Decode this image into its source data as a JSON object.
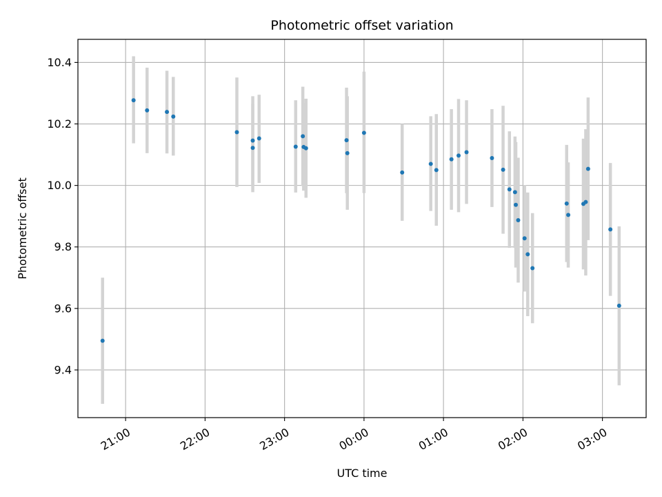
{
  "chart_data": {
    "type": "scatter",
    "title": "Photometric offset variation",
    "xlabel": "UTC time",
    "ylabel": "Photometric offset",
    "x_unit": "hours relative to 00:00 UTC",
    "xlim": [
      -3.6,
      3.55
    ],
    "ylim": [
      9.245,
      10.475
    ],
    "grid": true,
    "x_ticks": [
      {
        "value": -3,
        "label": "21:00"
      },
      {
        "value": -2,
        "label": "22:00"
      },
      {
        "value": -1,
        "label": "23:00"
      },
      {
        "value": 0,
        "label": "00:00"
      },
      {
        "value": 1,
        "label": "01:00"
      },
      {
        "value": 2,
        "label": "02:00"
      },
      {
        "value": 3,
        "label": "03:00"
      }
    ],
    "y_ticks": [
      {
        "value": 9.4,
        "label": "9.4"
      },
      {
        "value": 9.6,
        "label": "9.6"
      },
      {
        "value": 9.8,
        "label": "9.8"
      },
      {
        "value": 10.0,
        "label": "10.0"
      },
      {
        "value": 10.2,
        "label": "10.2"
      },
      {
        "value": 10.4,
        "label": "10.4"
      }
    ],
    "colors": {
      "point": "#1f77b4",
      "errorbar": "#d3d3d3",
      "grid": "#b0b0b0"
    },
    "points": [
      {
        "x": -3.29,
        "y": 9.495,
        "ylow": 9.29,
        "yhigh": 9.7
      },
      {
        "x": -2.9,
        "y": 10.277,
        "ylow": 10.137,
        "yhigh": 10.42
      },
      {
        "x": -2.73,
        "y": 10.244,
        "ylow": 10.105,
        "yhigh": 10.383
      },
      {
        "x": -2.48,
        "y": 10.239,
        "ylow": 10.104,
        "yhigh": 10.373
      },
      {
        "x": -2.4,
        "y": 10.224,
        "ylow": 10.097,
        "yhigh": 10.353
      },
      {
        "x": -1.6,
        "y": 10.173,
        "ylow": 9.995,
        "yhigh": 10.351
      },
      {
        "x": -1.4,
        "y": 10.146,
        "ylow": 10.002,
        "yhigh": 10.29
      },
      {
        "x": -1.4,
        "y": 10.122,
        "ylow": 9.978,
        "yhigh": 10.265
      },
      {
        "x": -1.32,
        "y": 10.153,
        "ylow": 10.008,
        "yhigh": 10.295
      },
      {
        "x": -0.86,
        "y": 10.126,
        "ylow": 9.977,
        "yhigh": 10.277
      },
      {
        "x": -0.77,
        "y": 10.16,
        "ylow": 9.998,
        "yhigh": 10.321
      },
      {
        "x": -0.76,
        "y": 10.125,
        "ylow": 9.983,
        "yhigh": 10.268
      },
      {
        "x": -0.73,
        "y": 10.121,
        "ylow": 9.96,
        "yhigh": 10.282
      },
      {
        "x": -0.22,
        "y": 10.147,
        "ylow": 9.975,
        "yhigh": 10.318
      },
      {
        "x": -0.21,
        "y": 10.105,
        "ylow": 9.921,
        "yhigh": 10.29
      },
      {
        "x": 0.0,
        "y": 10.171,
        "ylow": 9.975,
        "yhigh": 10.37
      },
      {
        "x": 0.48,
        "y": 10.042,
        "ylow": 9.885,
        "yhigh": 10.2
      },
      {
        "x": 0.84,
        "y": 10.07,
        "ylow": 9.917,
        "yhigh": 10.225
      },
      {
        "x": 0.91,
        "y": 10.05,
        "ylow": 9.869,
        "yhigh": 10.232
      },
      {
        "x": 1.1,
        "y": 10.085,
        "ylow": 9.921,
        "yhigh": 10.248
      },
      {
        "x": 1.19,
        "y": 10.097,
        "ylow": 9.913,
        "yhigh": 10.281
      },
      {
        "x": 1.29,
        "y": 10.108,
        "ylow": 9.94,
        "yhigh": 10.277
      },
      {
        "x": 1.61,
        "y": 10.089,
        "ylow": 9.93,
        "yhigh": 10.248
      },
      {
        "x": 1.75,
        "y": 10.051,
        "ylow": 9.843,
        "yhigh": 10.259
      },
      {
        "x": 1.83,
        "y": 9.987,
        "ylow": 9.797,
        "yhigh": 10.176
      },
      {
        "x": 1.9,
        "y": 9.978,
        "ylow": 9.797,
        "yhigh": 10.159
      },
      {
        "x": 1.91,
        "y": 9.937,
        "ylow": 9.733,
        "yhigh": 10.141
      },
      {
        "x": 1.94,
        "y": 9.887,
        "ylow": 9.684,
        "yhigh": 10.09
      },
      {
        "x": 2.02,
        "y": 9.828,
        "ylow": 9.655,
        "yhigh": 10.001
      },
      {
        "x": 2.06,
        "y": 9.776,
        "ylow": 9.575,
        "yhigh": 9.977
      },
      {
        "x": 2.12,
        "y": 9.731,
        "ylow": 9.552,
        "yhigh": 9.91
      },
      {
        "x": 2.55,
        "y": 9.941,
        "ylow": 9.751,
        "yhigh": 10.132
      },
      {
        "x": 2.57,
        "y": 9.904,
        "ylow": 9.733,
        "yhigh": 10.075
      },
      {
        "x": 2.76,
        "y": 9.94,
        "ylow": 9.727,
        "yhigh": 10.152
      },
      {
        "x": 2.79,
        "y": 9.946,
        "ylow": 9.707,
        "yhigh": 10.183
      },
      {
        "x": 2.82,
        "y": 10.054,
        "ylow": 9.822,
        "yhigh": 10.286
      },
      {
        "x": 3.1,
        "y": 9.857,
        "ylow": 9.641,
        "yhigh": 10.073
      },
      {
        "x": 3.21,
        "y": 9.609,
        "ylow": 9.35,
        "yhigh": 9.867
      }
    ]
  }
}
